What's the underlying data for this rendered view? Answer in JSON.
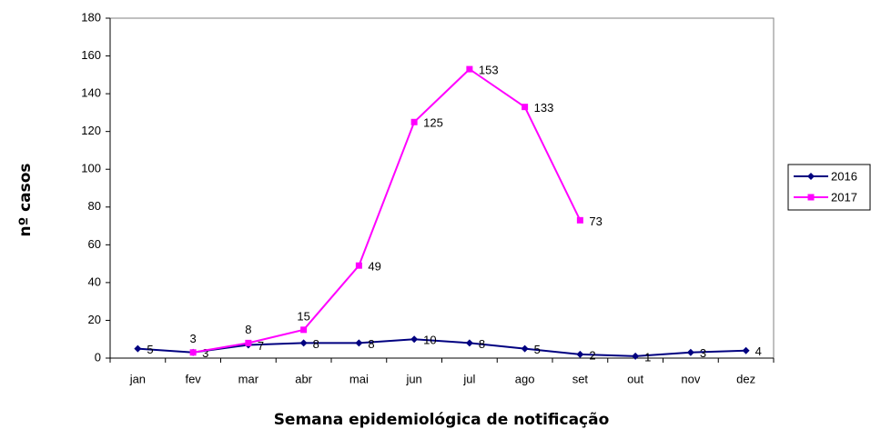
{
  "chart_data": {
    "type": "line",
    "x_label": "Semana epidemiológica de notificação",
    "y_label": "nº casos",
    "categories": [
      "jan",
      "fev",
      "mar",
      "abr",
      "mai",
      "jun",
      "jul",
      "ago",
      "set",
      "out",
      "nov",
      "dez"
    ],
    "series": [
      {
        "name": "2016",
        "color": "#000080",
        "marker": "diamond",
        "values": [
          5,
          3,
          7,
          8,
          8,
          10,
          8,
          5,
          2,
          1,
          3,
          4
        ]
      },
      {
        "name": "2017",
        "color": "#ff00ff",
        "marker": "square",
        "values": [
          null,
          3,
          8,
          15,
          49,
          125,
          153,
          133,
          73,
          null,
          null,
          null
        ]
      }
    ],
    "ylim": [
      0,
      180
    ],
    "yticks": [
      0,
      20,
      40,
      60,
      80,
      100,
      120,
      140,
      160,
      180
    ],
    "grid": false,
    "legend": "right"
  }
}
